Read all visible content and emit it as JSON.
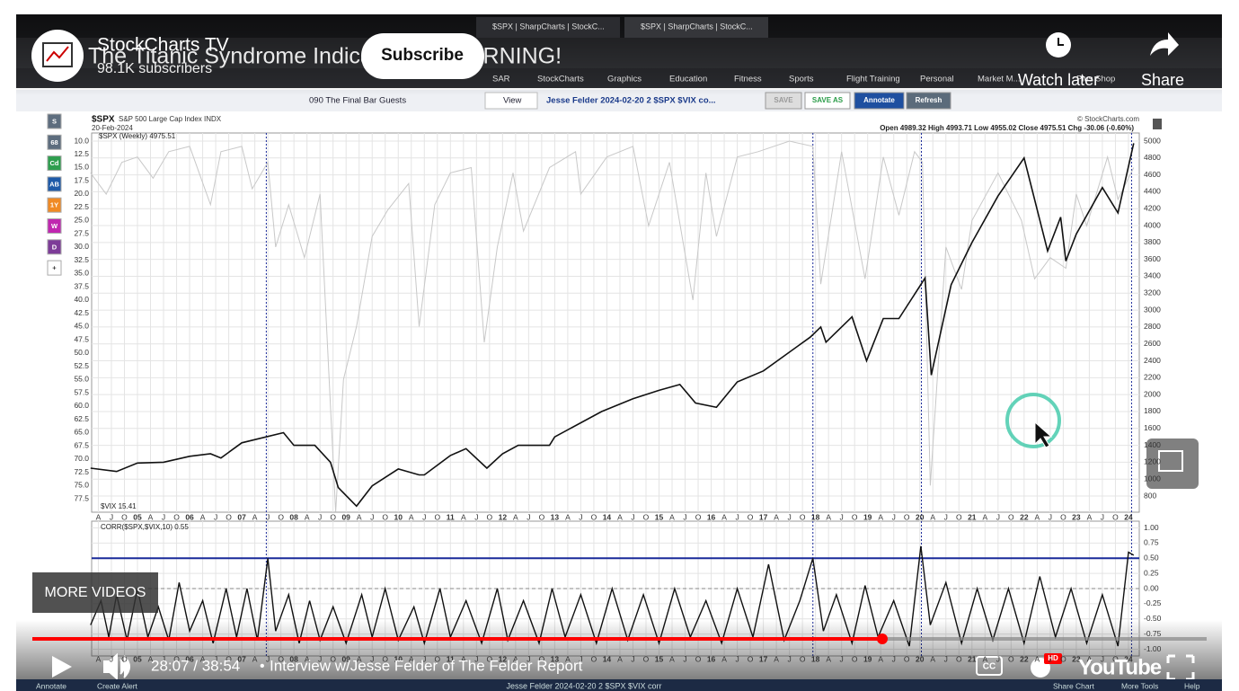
{
  "browser": {
    "tabs": [
      "$SPX | SharpCharts | StockC...",
      "$SPX | SharpCharts | StockC..."
    ],
    "bookmarks": [
      "SAR",
      "StockCharts",
      "Graphics",
      "Education",
      "Fitness",
      "Sports",
      "Flight Training",
      "Personal",
      "Market M...",
      "Plus Shop"
    ]
  },
  "video": {
    "channel": "StockCharts TV",
    "subscribers": "98.1K subscribers",
    "subscribe": "Subscribe",
    "title": "The Titanic Syndrome Indicator Is a WARNING!",
    "watch_later": "Watch later",
    "share": "Share",
    "more_videos": "MORE VIDEOS",
    "time": "28:07 / 38:54",
    "separator": "•",
    "chapter": "Interview w/Jesse Felder of The Felder Report",
    "logo": "YouTube",
    "cc": "CC",
    "hd": "HD"
  },
  "toolbar": {
    "chartlist": "090 The Final Bar Guests",
    "view": "View",
    "chart": "Jesse Felder 2024-02-20 2 $SPX $VIX co...",
    "save": "SAVE",
    "save_as": "SAVE AS",
    "annotate": "Annotate",
    "refresh": "Refresh"
  },
  "sidebar": [
    "S",
    "68",
    "Cd",
    "AB",
    "1Y",
    "W",
    "D",
    "+"
  ],
  "chart": {
    "symbol": "$SPX",
    "name": "S&P 500 Large Cap Index INDX",
    "date": "20-Feb-2024",
    "legend": "$SPX (Weekly) 4975.51",
    "copyright": "© StockCharts.com",
    "ohlc": "Open 4989.32  High 4993.71  Low 4955.02  Close 4975.51  Chg -30.06 (-0.60%)",
    "vix_legend": "$VIX 15.41",
    "corr_legend": "CORR($SPX,$VIX,10) 0.55",
    "x_labels": [
      "A",
      "J",
      "O",
      "05",
      "A",
      "J",
      "O",
      "06",
      "A",
      "J",
      "O",
      "07",
      "A",
      "J",
      "O",
      "08",
      "A",
      "J",
      "O",
      "09",
      "A",
      "J",
      "O",
      "10",
      "A",
      "J",
      "O",
      "11",
      "A",
      "J",
      "O",
      "12",
      "A",
      "J",
      "O",
      "13",
      "A",
      "J",
      "O",
      "14",
      "A",
      "J",
      "O",
      "15",
      "A",
      "J",
      "O",
      "16",
      "A",
      "J",
      "O",
      "17",
      "A",
      "J",
      "O",
      "18",
      "A",
      "J",
      "O",
      "19",
      "A",
      "J",
      "O",
      "20",
      "A",
      "J",
      "O",
      "21",
      "A",
      "J",
      "O",
      "22",
      "A",
      "J",
      "O",
      "23",
      "A",
      "J",
      "O",
      "24"
    ],
    "yticks_vix": [
      {
        "value": 10,
        "label": "10.0"
      },
      12.5,
      {
        "value": 15,
        "label": "15.0"
      },
      17.5,
      {
        "value": 20,
        "label": "20.0"
      },
      22.5,
      {
        "value": 25,
        "label": "25.0"
      },
      27.5,
      {
        "value": 30,
        "label": "30.0"
      },
      32.5,
      {
        "value": 35,
        "label": "35.0"
      },
      37.5,
      {
        "value": 40,
        "label": "40.0"
      },
      42.5,
      {
        "value": 45,
        "label": "45.0"
      },
      47.5,
      {
        "value": 50,
        "label": "50.0"
      },
      52.5,
      {
        "value": 55,
        "label": "55.0"
      },
      57.5,
      {
        "value": 60,
        "label": "60.0"
      },
      62.5,
      {
        "value": 65,
        "label": "65.0"
      },
      67.5,
      {
        "value": 70,
        "label": "70.0"
      },
      72.5,
      {
        "value": 75,
        "label": "75.0"
      },
      77.5
    ],
    "ylim_vix": [
      10,
      77.5
    ],
    "yticks_price": [
      5000,
      4800,
      4600,
      4400,
      4200,
      4000,
      3800,
      3600,
      3400,
      3200,
      3000,
      2800,
      2600,
      2400,
      2200,
      2000,
      1800,
      1600,
      1400,
      1200,
      1000,
      800
    ],
    "ylim_price": [
      800,
      5000
    ],
    "yticks_corr": [
      {
        "value": 1,
        "label": "1.00"
      },
      0.75,
      {
        "value": 0.5,
        "label": "0.50"
      },
      0.25,
      {
        "value": 0,
        "label": "0.00"
      },
      -0.25,
      {
        "value": -0.5,
        "label": "-0.50"
      },
      -0.75,
      {
        "value": -1,
        "label": "-1.00"
      }
    ],
    "ylim_corr": [
      -1,
      1
    ],
    "spx": {
      "x": [
        2004.1,
        2004.6,
        2005,
        2005.5,
        2006,
        2006.4,
        2006.6,
        2007,
        2007.8,
        2008,
        2008.4,
        2008.7,
        2008.85,
        2009.2,
        2009.5,
        2010,
        2010.4,
        2010.5,
        2011,
        2011.3,
        2011.7,
        2012,
        2012.3,
        2012.9,
        2013,
        2013.9,
        2014.5,
        2015,
        2015.4,
        2015.7,
        2016.1,
        2016.5,
        2017,
        2017.9,
        2018.1,
        2018.2,
        2018.7,
        2018.98,
        2019.3,
        2019.6,
        2020.1,
        2020.22,
        2020.6,
        2021,
        2021.5,
        2022,
        2022.45,
        2022.7,
        2022.8,
        2023,
        2023.5,
        2023.8,
        2024.1
      ],
      "values": [
        1130,
        1090,
        1190,
        1200,
        1270,
        1300,
        1250,
        1430,
        1550,
        1400,
        1400,
        1200,
        900,
        680,
        920,
        1120,
        1050,
        1050,
        1280,
        1360,
        1130,
        1300,
        1400,
        1400,
        1500,
        1800,
        1950,
        2050,
        2120,
        1900,
        1850,
        2150,
        2280,
        2680,
        2800,
        2620,
        2920,
        2400,
        2900,
        2900,
        3380,
        2230,
        3300,
        3800,
        4350,
        4800,
        3700,
        4100,
        3580,
        3900,
        4450,
        4150,
        4975
      ]
    },
    "vix": {
      "x": [
        2004.1,
        2004.4,
        2004.7,
        2005,
        2005.3,
        2005.6,
        2006,
        2006.4,
        2006.6,
        2007,
        2007.2,
        2007.5,
        2007.65,
        2007.9,
        2008.2,
        2008.5,
        2008.8,
        2008.95,
        2009.2,
        2009.5,
        2009.8,
        2010.2,
        2010.4,
        2010.7,
        2011,
        2011.4,
        2011.65,
        2011.9,
        2012.2,
        2012.4,
        2012.9,
        2013.4,
        2013.5,
        2014,
        2014.5,
        2014.8,
        2015.2,
        2015.65,
        2015.9,
        2016.1,
        2016.5,
        2016.9,
        2017.5,
        2017.95,
        2018.1,
        2018.5,
        2018.95,
        2019.3,
        2019.6,
        2019.9,
        2020.05,
        2020.2,
        2020.5,
        2020.8,
        2021,
        2021.5,
        2021.95,
        2022.2,
        2022.5,
        2022.8,
        2023,
        2023.2,
        2023.6,
        2023.8,
        2024.1
      ],
      "values": [
        16,
        20,
        14,
        13,
        17,
        12,
        11,
        22,
        12,
        11,
        19,
        14,
        30,
        22,
        32,
        20,
        80,
        55,
        45,
        28,
        23,
        18,
        45,
        22,
        16,
        15,
        48,
        30,
        16,
        27,
        15,
        12,
        20,
        13,
        11,
        26,
        14,
        40,
        16,
        28,
        13,
        12,
        10,
        11,
        37,
        12,
        36,
        13,
        24,
        12,
        14,
        75,
        30,
        38,
        25,
        16,
        25,
        36,
        32,
        34,
        20,
        26,
        13,
        21,
        15
      ]
    },
    "corr": {
      "x": [
        2004.1,
        2004.3,
        2004.45,
        2004.6,
        2004.8,
        2005,
        2005.2,
        2005.4,
        2005.6,
        2005.8,
        2006,
        2006.25,
        2006.45,
        2006.7,
        2006.9,
        2007.1,
        2007.3,
        2007.5,
        2007.65,
        2007.9,
        2008.1,
        2008.3,
        2008.5,
        2008.75,
        2009,
        2009.3,
        2009.5,
        2009.75,
        2010,
        2010.3,
        2010.5,
        2010.8,
        2011,
        2011.3,
        2011.6,
        2011.9,
        2012.1,
        2012.4,
        2012.7,
        2012.95,
        2013.2,
        2013.5,
        2013.8,
        2014.1,
        2014.4,
        2014.7,
        2015,
        2015.3,
        2015.6,
        2015.9,
        2016.2,
        2016.5,
        2016.8,
        2017.1,
        2017.4,
        2017.7,
        2017.95,
        2018.15,
        2018.4,
        2018.7,
        2018.95,
        2019.2,
        2019.5,
        2019.8,
        2020.02,
        2020.2,
        2020.5,
        2020.8,
        2021.1,
        2021.4,
        2021.7,
        2022,
        2022.3,
        2022.6,
        2022.9,
        2023.2,
        2023.5,
        2023.8,
        2024,
        2024.1
      ],
      "values": [
        -0.6,
        -0.2,
        -0.8,
        -0.1,
        -0.85,
        0,
        -0.8,
        -0.3,
        -0.85,
        0.1,
        -0.7,
        -0.2,
        -0.9,
        0,
        -0.8,
        0,
        -0.85,
        0.5,
        -0.7,
        -0.1,
        -0.9,
        -0.2,
        -0.85,
        -0.3,
        -0.9,
        -0.1,
        -0.8,
        0,
        -0.85,
        -0.3,
        -0.9,
        0,
        -0.8,
        -0.2,
        -0.9,
        0,
        -0.85,
        -0.2,
        -0.9,
        0,
        -0.8,
        -0.1,
        -0.9,
        0,
        -0.85,
        -0.1,
        -0.9,
        0,
        -0.8,
        -0.2,
        -0.9,
        0,
        -0.8,
        0.4,
        -0.85,
        -0.2,
        0.5,
        -0.7,
        -0.1,
        -0.9,
        0.05,
        -0.8,
        -0.2,
        -0.95,
        0.7,
        -0.6,
        0.1,
        -0.9,
        0,
        -0.85,
        0,
        -0.9,
        0.2,
        -0.8,
        0,
        -0.9,
        -0.1,
        -0.95,
        0.6,
        0.55
      ]
    }
  },
  "footer": {
    "annotate": "Annotate",
    "alert": "Create Alert",
    "chart": "Jesse Felder 2024-02-20 2 $SPX $VIX corr",
    "share": "Share Chart",
    "tools": "More Tools",
    "help": "Help"
  }
}
